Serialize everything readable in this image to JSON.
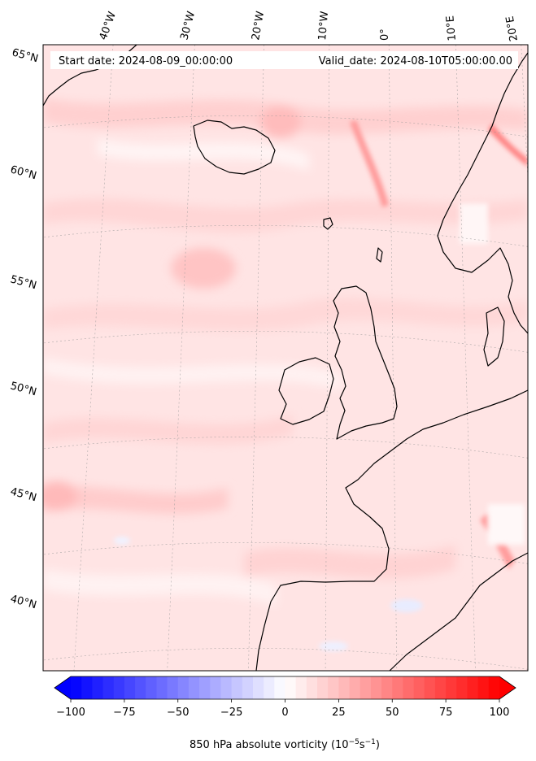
{
  "map": {
    "start_date": "Start date: 2024-08-09_00:00:00",
    "valid_date": "Valid_date: 2024-08-10T05:00:00.00",
    "lon_labels": [
      "40°W",
      "30°W",
      "20°W",
      "10°W",
      "0°",
      "10°E",
      "20°E"
    ],
    "lat_labels": [
      "65°N",
      "60°N",
      "55°N",
      "50°N",
      "45°N",
      "40°N"
    ]
  },
  "colorbar": {
    "min": -100,
    "max": 100,
    "ticks": [
      "−100",
      "−75",
      "−50",
      "−25",
      "0",
      "25",
      "50",
      "75",
      "100"
    ],
    "label_prefix": "850 hPa absolute vorticity (10",
    "label_exp1": "−5",
    "label_mid": "s",
    "label_exp2": "−1",
    "label_suffix": ")",
    "colors": {
      "negative": "#0000ff",
      "zero": "#ffffff",
      "positive": "#ff0000"
    }
  }
}
